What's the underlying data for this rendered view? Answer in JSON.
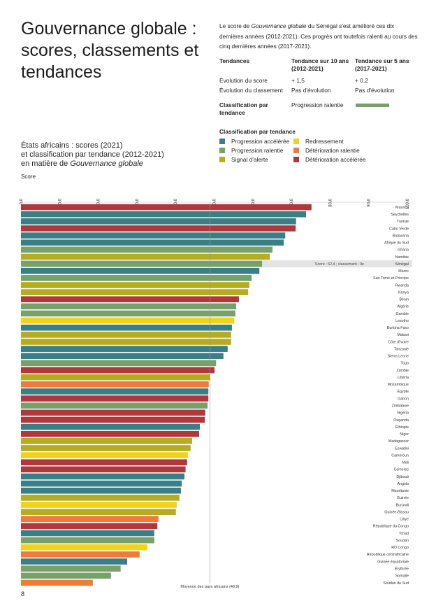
{
  "header": {
    "title": "Gouvernance globale : scores, classements et tendances",
    "paragraph": [
      "Le score de ",
      "Gouvernance globale",
      " du Sénégal s'est amélioré ces dix dernières années (2012-2021). Ces progrès ont toutefois ralenti au cours des cinq dernières années (2017-2021)."
    ]
  },
  "table": {
    "header": [
      "Tendances",
      "Tendance sur 10 ans (2012-2021)",
      "Tendance sur 5 ans (2017-2021)"
    ],
    "rows": [
      [
        "Évolution du score",
        "+ 1,5",
        "+ 0,2"
      ],
      [
        "Évolution du classement",
        "Pas d'évolution",
        "Pas d'évolution"
      ],
      [
        "Classification par tendance",
        "Progression ralentie"
      ]
    ]
  },
  "page_number": "8",
  "chart_data": {
    "type": "bar",
    "orientation": "horizontal",
    "title": [
      "États africains : scores (2021)",
      "et classification par tendance (2012-2021)",
      "en matière de ",
      "Gouvernance globale"
    ],
    "axis_label": "Score",
    "legend": {
      "title": "Classification par tendance",
      "items": [
        {
          "label": "Progression accélérée",
          "color": "#3a7f86"
        },
        {
          "label": "Redressement",
          "color": "#f2d21a"
        },
        {
          "label": "Progression ralentie",
          "color": "#78a06a"
        },
        {
          "label": "Détérioration ralentie",
          "color": "#ee7b3b"
        },
        {
          "label": "Signal d'alerte",
          "color": "#b5ac1f"
        },
        {
          "label": "Détérioration accélérée",
          "color": "#b0373c"
        }
      ]
    },
    "xlim": [
      0,
      100
    ],
    "xticks": [
      {
        "value": 0,
        "label": "0,0"
      },
      {
        "value": 10,
        "label": "10,0"
      },
      {
        "value": 20,
        "label": "20,0"
      },
      {
        "value": 30,
        "label": "30,0"
      },
      {
        "value": 40,
        "label": "40,0"
      },
      {
        "value": 50,
        "label": "50,0"
      },
      {
        "value": 60,
        "label": "60,0"
      },
      {
        "value": 70,
        "label": "70,0"
      },
      {
        "value": 80,
        "label": "80,0"
      },
      {
        "value": 90,
        "label": "90,0"
      },
      {
        "value": 100,
        "label": "100,0"
      }
    ],
    "categories": [
      "Maurice",
      "Seychelles",
      "Tunisie",
      "Cabo Verde",
      "Botswana",
      "Afrique du Sud",
      "Ghana",
      "Namibie",
      "Sénégal",
      "Maroc",
      "Sao Tomé-et-Principe",
      "Rwanda",
      "Kenya",
      "Bénin",
      "Algérie",
      "Gambie",
      "Lesotho",
      "Burkina Faso",
      "Malawi",
      "Côte d'Ivoire",
      "Tanzanie",
      "Sierra Leone",
      "Togo",
      "Zambie",
      "Libéria",
      "Mozambique",
      "Égypte",
      "Gabon",
      "Zimbabwe",
      "Nigéria",
      "Ouganda",
      "Éthiopie",
      "Niger",
      "Madagascar",
      "Eswatini",
      "Cameroun",
      "Mali",
      "Comores",
      "Djibouti",
      "Angola",
      "Mauritanie",
      "Guinée",
      "Burundi",
      "Guinée-Bissau",
      "Libye",
      "République du Congo",
      "Tchad",
      "Soudan",
      "RD Congo",
      "République centrafricaine",
      "Guinée équatoriale",
      "Érythrée",
      "Somalie",
      "Soudan du Sud"
    ],
    "values": [
      75.2,
      73.8,
      71.2,
      71.1,
      68.4,
      68.0,
      65.1,
      64.4,
      62.4,
      61.7,
      59.7,
      59.1,
      58.8,
      56.4,
      55.7,
      55.5,
      55.2,
      54.6,
      54.4,
      54.4,
      53.5,
      52.4,
      50.5,
      50.1,
      49.0,
      48.6,
      48.5,
      48.5,
      48.3,
      47.7,
      47.6,
      46.3,
      46.1,
      44.3,
      43.9,
      43.2,
      43.0,
      42.6,
      42.3,
      41.6,
      41.4,
      41.0,
      40.3,
      40.1,
      35.6,
      35.3,
      34.5,
      34.5,
      32.7,
      30.7,
      27.5,
      25.8,
      23.3,
      18.6
    ],
    "bar_colors": [
      "#b0373c",
      "#3a7f86",
      "#3a7f86",
      "#b0373c",
      "#3a7f86",
      "#3a7f86",
      "#78a06a",
      "#b5ac1f",
      "#78a06a",
      "#3a7f86",
      "#78a06a",
      "#b5ac1f",
      "#b5ac1f",
      "#b0373c",
      "#78a06a",
      "#78a06a",
      "#f2d21a",
      "#3a7f86",
      "#b5ac1f",
      "#b5ac1f",
      "#3a7f86",
      "#3a7f86",
      "#78a06a",
      "#b0373c",
      "#b5ac1f",
      "#ee7b3b",
      "#3a7f86",
      "#b0373c",
      "#78a06a",
      "#b0373c",
      "#b0373c",
      "#3a7f86",
      "#b0373c",
      "#b5ac1f",
      "#b5ac1f",
      "#f2d21a",
      "#b0373c",
      "#b0373c",
      "#3a7f86",
      "#3a7f86",
      "#3a7f86",
      "#b5ac1f",
      "#f2d21a",
      "#b5ac1f",
      "#ee7b3b",
      "#b0373c",
      "#3a7f86",
      "#78a06a",
      "#f2d21a",
      "#ee7b3b",
      "#3a7f86",
      "#78a06a",
      "#78a06a",
      "#ee7b3b"
    ],
    "highlight": {
      "category": "Sénégal",
      "text": "Score : 62,4 ; classement : 9e"
    },
    "reference_line": {
      "value": 48.9,
      "label": "Moyenne des pays africains (48,9)"
    }
  }
}
